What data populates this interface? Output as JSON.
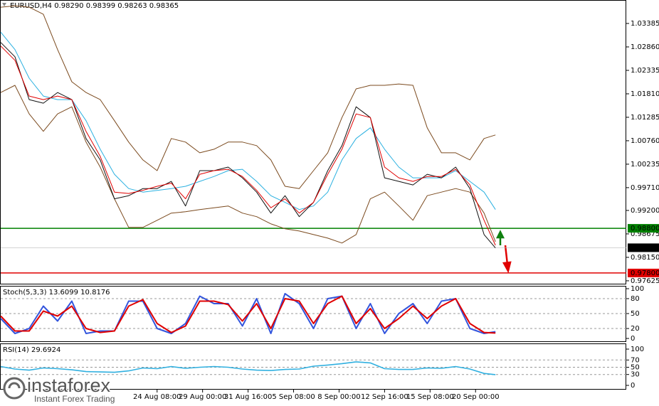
{
  "chart_data": [
    {
      "type": "line",
      "title": "EURUSD,H4 0.98290 0.98399 0.98263 0.98365",
      "x": [
        0,
        5,
        10,
        15,
        20,
        25,
        30,
        35,
        40,
        45,
        50,
        55,
        60,
        65,
        70,
        75,
        80,
        85,
        90,
        95,
        100,
        105,
        110,
        115,
        120,
        125,
        130,
        135,
        140,
        145,
        150,
        155,
        160,
        165,
        170,
        174
      ],
      "xlim": [
        0,
        220
      ],
      "xticks": [
        {
          "value": 55,
          "label": "24 Aug 08:00"
        },
        {
          "value": 71,
          "label": "29 Aug 00:00"
        },
        {
          "value": 87,
          "label": "31 Aug 16:00"
        },
        {
          "value": 103,
          "label": "5 Sep 08:00"
        },
        {
          "value": 119,
          "label": "8 Sep 00:00"
        },
        {
          "value": 135,
          "label": "12 Sep 16:00"
        },
        {
          "value": 151,
          "label": "15 Sep 08:00"
        },
        {
          "value": 167,
          "label": "20 Sep 00:00"
        }
      ],
      "ylim": [
        0.9756,
        1.0391
      ],
      "yticks": [
        1.03385,
        {
          "value": 1.0286,
          "label": "1.02860"
        },
        1.02335,
        {
          "value": 1.0181,
          "label": "1.01810"
        },
        1.01285,
        {
          "value": 1.0076,
          "label": "1.00760"
        },
        1.00235,
        {
          "value": 0.9971,
          "label": "0.99710"
        },
        {
          "value": 0.992,
          "label": "0.99200"
        },
        0.98675,
        {
          "value": 0.9815,
          "label": "0.98150"
        },
        0.97625
      ],
      "series": [
        {
          "color": "#7b4a1e",
          "values": [
            1.0375,
            1.0378,
            1.0375,
            1.0359,
            1.028,
            1.0208,
            1.0184,
            1.0168,
            1.0121,
            1.0073,
            1.0033,
            1.0009,
            1.0081,
            1.0073,
            1.0049,
            1.0057,
            1.0073,
            1.0073,
            1.0065,
            1.0033,
            0.9974,
            0.9969,
            1.0009,
            1.0049,
            1.0128,
            1.0192,
            1.02,
            1.02,
            1.0203,
            1.02,
            1.0105,
            1.0049,
            1.0049,
            1.0033,
            1.0081,
            1.0089
          ]
        },
        {
          "color": "#7b4a1e",
          "values": [
            1.0184,
            1.02,
            1.0136,
            1.0097,
            1.0136,
            1.0152,
            1.0073,
            1.0017,
            0.9946,
            0.9882,
            0.9882,
            0.9898,
            0.9914,
            0.9917,
            0.9922,
            0.9926,
            0.993,
            0.9914,
            0.9906,
            0.989,
            0.9879,
            0.9874,
            0.9866,
            0.9858,
            0.9847,
            0.9866,
            0.9946,
            0.9961,
            0.993,
            0.9898,
            0.9953,
            0.9961,
            0.9969,
            0.9961,
            0.9914,
            0.985
          ]
        },
        {
          "color": "#2ab0e0",
          "values": [
            1.0319,
            1.028,
            1.0216,
            1.0176,
            1.0168,
            1.0168,
            1.0121,
            1.0057,
            1.0001,
            0.9969,
            0.9961,
            0.9965,
            0.9969,
            0.9974,
            0.9985,
            0.9996,
            1.0009,
            1.0012,
            0.9985,
            0.9953,
            0.9938,
            0.9922,
            0.993,
            0.9961,
            1.0033,
            1.0081,
            1.0105,
            1.0057,
            1.0017,
            0.9993,
            0.9993,
            0.9993,
            1.0009,
            0.9985,
            0.9961,
            0.9922
          ]
        },
        {
          "color": "#111111",
          "values": [
            1.0296,
            1.0264,
            1.0168,
            1.016,
            1.0184,
            1.0168,
            1.0081,
            1.0033,
            0.9946,
            0.9953,
            0.9969,
            0.9969,
            0.9985,
            0.993,
            1.0009,
            1.0009,
            1.0017,
            0.9993,
            0.9961,
            0.9914,
            0.9953,
            0.9906,
            0.9938,
            1.0009,
            1.0065,
            1.0152,
            1.0128,
            0.9993,
            0.9985,
            0.9977,
            1.0001,
            0.9993,
            1.0017,
            0.9969,
            0.9866,
            0.9836
          ]
        },
        {
          "color": "#e00000",
          "values": [
            1.0288,
            1.0256,
            1.0176,
            1.0168,
            1.0176,
            1.0168,
            1.0097,
            1.0041,
            0.9961,
            0.9958,
            0.9965,
            0.9974,
            0.9981,
            0.9946,
            1.0001,
            1.0009,
            1.0012,
            0.9996,
            0.9965,
            0.9926,
            0.9946,
            0.9914,
            0.9938,
            1.0001,
            1.0057,
            1.0136,
            1.0128,
            1.0017,
            0.9993,
            0.9985,
            0.9996,
            0.9996,
            1.0012,
            0.9977,
            0.9898,
            0.9842
          ]
        }
      ],
      "hlines": [
        {
          "value": 0.988,
          "label": "0.98800",
          "color": "#008000"
        },
        {
          "value": 0.978,
          "label": "0.97800",
          "color": "#e00000"
        }
      ],
      "price_label": 0.98365
    },
    {
      "type": "line",
      "title": "Stoch(5,3,3) 13.6099 10.8176",
      "x": [
        0,
        5,
        10,
        15,
        20,
        25,
        30,
        35,
        40,
        45,
        50,
        55,
        60,
        65,
        70,
        75,
        80,
        85,
        90,
        95,
        100,
        105,
        110,
        115,
        120,
        125,
        130,
        135,
        140,
        145,
        150,
        155,
        160,
        165,
        170,
        174
      ],
      "xlim": [
        0,
        220
      ],
      "ylim": [
        0,
        100
      ],
      "yticks": [
        100,
        80,
        50,
        20,
        0
      ],
      "series": [
        {
          "color": "#3355dd",
          "values": [
            40,
            10,
            20,
            65,
            35,
            75,
            10,
            15,
            15,
            75,
            75,
            20,
            10,
            30,
            85,
            70,
            70,
            25,
            80,
            10,
            90,
            70,
            20,
            80,
            85,
            20,
            70,
            10,
            50,
            70,
            30,
            75,
            80,
            20,
            10,
            13.6
          ]
        },
        {
          "color": "#e00000",
          "values": [
            45,
            15,
            15,
            55,
            45,
            65,
            20,
            12,
            15,
            65,
            78,
            30,
            12,
            25,
            75,
            75,
            68,
            35,
            70,
            20,
            80,
            75,
            30,
            70,
            85,
            30,
            60,
            20,
            40,
            65,
            40,
            65,
            80,
            30,
            12,
            10.8
          ]
        }
      ]
    },
    {
      "type": "line",
      "title": "RSI(14) 29.6924",
      "x": [
        0,
        5,
        10,
        15,
        20,
        25,
        30,
        35,
        40,
        45,
        50,
        55,
        60,
        65,
        70,
        75,
        80,
        85,
        90,
        95,
        100,
        105,
        110,
        115,
        120,
        125,
        130,
        135,
        140,
        145,
        150,
        155,
        160,
        165,
        170,
        174
      ],
      "xlim": [
        0,
        220
      ],
      "ylim": [
        0,
        100
      ],
      "yticks": [
        100,
        70,
        50,
        30,
        0
      ],
      "series": [
        {
          "color": "#30b0e0",
          "values": [
            52,
            45,
            42,
            48,
            46,
            43,
            38,
            37,
            36,
            40,
            48,
            46,
            52,
            47,
            50,
            52,
            50,
            45,
            42,
            41,
            44,
            45,
            53,
            56,
            60,
            65,
            62,
            46,
            44,
            44,
            48,
            47,
            52,
            45,
            33,
            29.7
          ]
        }
      ]
    }
  ],
  "branding": {
    "name": "instaforex",
    "slogan": "Instant Forex Trading"
  }
}
